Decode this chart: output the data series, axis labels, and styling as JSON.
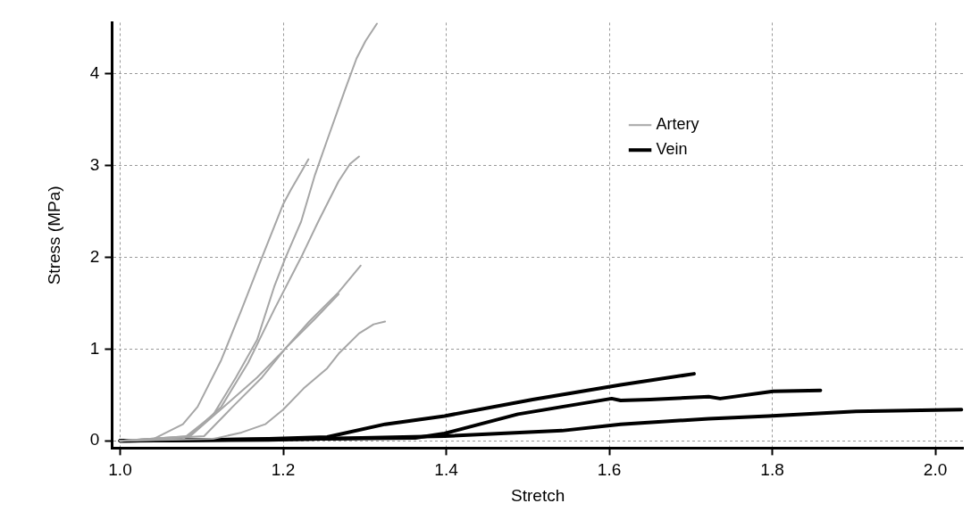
{
  "chart_data": {
    "type": "line",
    "xlabel": "Stretch",
    "ylabel": "Stress (MPa)",
    "xlim": [
      0.99,
      2.035
    ],
    "ylim": [
      -0.08,
      4.56
    ],
    "xticks": [
      {
        "value": 1,
        "label": "1.0"
      },
      {
        "value": 1.2,
        "label": "1.2"
      },
      {
        "value": 1.4,
        "label": "1.4"
      },
      {
        "value": 1.6,
        "label": "1.6"
      },
      {
        "value": 1.8,
        "label": "1.8"
      },
      {
        "value": 2,
        "label": "2.0"
      }
    ],
    "yticks": [
      0,
      1,
      2,
      3,
      4
    ],
    "grid": true,
    "legend": "top right",
    "marker": "none",
    "line_style": "solid",
    "series": [
      {
        "name": "Artery",
        "color": "#a6a6a6",
        "x": [
          1.0,
          1.041,
          1.077,
          1.095,
          1.124,
          1.149,
          1.174,
          1.2,
          1.209,
          1.222,
          1.231
        ],
        "values": [
          0,
          0.02,
          0.18,
          0.37,
          0.88,
          1.43,
          2.0,
          2.58,
          2.73,
          2.93,
          3.07
        ]
      },
      {
        "color": "#a6a6a6",
        "x": [
          1.0,
          1.077,
          1.114,
          1.142,
          1.168,
          1.189,
          1.203,
          1.222,
          1.239,
          1.254,
          1.276,
          1.29,
          1.301,
          1.315
        ],
        "values": [
          0,
          0.02,
          0.28,
          0.69,
          1.1,
          1.68,
          2.0,
          2.39,
          2.9,
          3.28,
          3.83,
          4.17,
          4.36,
          4.55
        ]
      },
      {
        "color": "#a6a6a6",
        "x": [
          1.0,
          1.084,
          1.124,
          1.157,
          1.189,
          1.222,
          1.243,
          1.268,
          1.282,
          1.293
        ],
        "values": [
          0,
          0.05,
          0.37,
          0.85,
          1.43,
          2.0,
          2.39,
          2.83,
          3.02,
          3.1
        ]
      },
      {
        "color": "#a6a6a6",
        "x": [
          1.0,
          1.086,
          1.131,
          1.168,
          1.2,
          1.232,
          1.268,
          1.295
        ],
        "values": [
          0,
          0.05,
          0.4,
          0.69,
          0.98,
          1.3,
          1.62,
          1.91
        ]
      },
      {
        "color": "#a6a6a6",
        "x": [
          1.0,
          1.103,
          1.138,
          1.174,
          1.203,
          1.239,
          1.268
        ],
        "values": [
          0,
          0.05,
          0.37,
          0.69,
          1.01,
          1.33,
          1.6
        ]
      },
      {
        "color": "#a6a6a6",
        "x": [
          1.0,
          1.114,
          1.149,
          1.178,
          1.2,
          1.225,
          1.254,
          1.268,
          1.293,
          1.311,
          1.325
        ],
        "values": [
          0,
          0.02,
          0.09,
          0.18,
          0.34,
          0.57,
          0.79,
          0.95,
          1.17,
          1.27,
          1.3
        ]
      },
      {
        "name": "Vein",
        "color": "#000000",
        "x": [
          1.0,
          1.182,
          1.254,
          1.325,
          1.398,
          1.506,
          1.614,
          1.704
        ],
        "values": [
          0,
          0.02,
          0.04,
          0.18,
          0.27,
          0.45,
          0.61,
          0.73
        ]
      },
      {
        "color": "#000000",
        "x": [
          1.0,
          1.362,
          1.398,
          1.488,
          1.542,
          1.603,
          1.614,
          1.65,
          1.722,
          1.736,
          1.801,
          1.859
        ],
        "values": [
          0,
          0.03,
          0.08,
          0.29,
          0.37,
          0.46,
          0.44,
          0.45,
          0.48,
          0.46,
          0.54,
          0.55
        ]
      },
      {
        "color": "#000000",
        "x": [
          1.0,
          1.182,
          1.398,
          1.542,
          1.614,
          1.722,
          1.795,
          1.903,
          2.032
        ],
        "values": [
          0,
          0.01,
          0.05,
          0.11,
          0.18,
          0.24,
          0.27,
          0.32,
          0.34
        ]
      }
    ]
  }
}
